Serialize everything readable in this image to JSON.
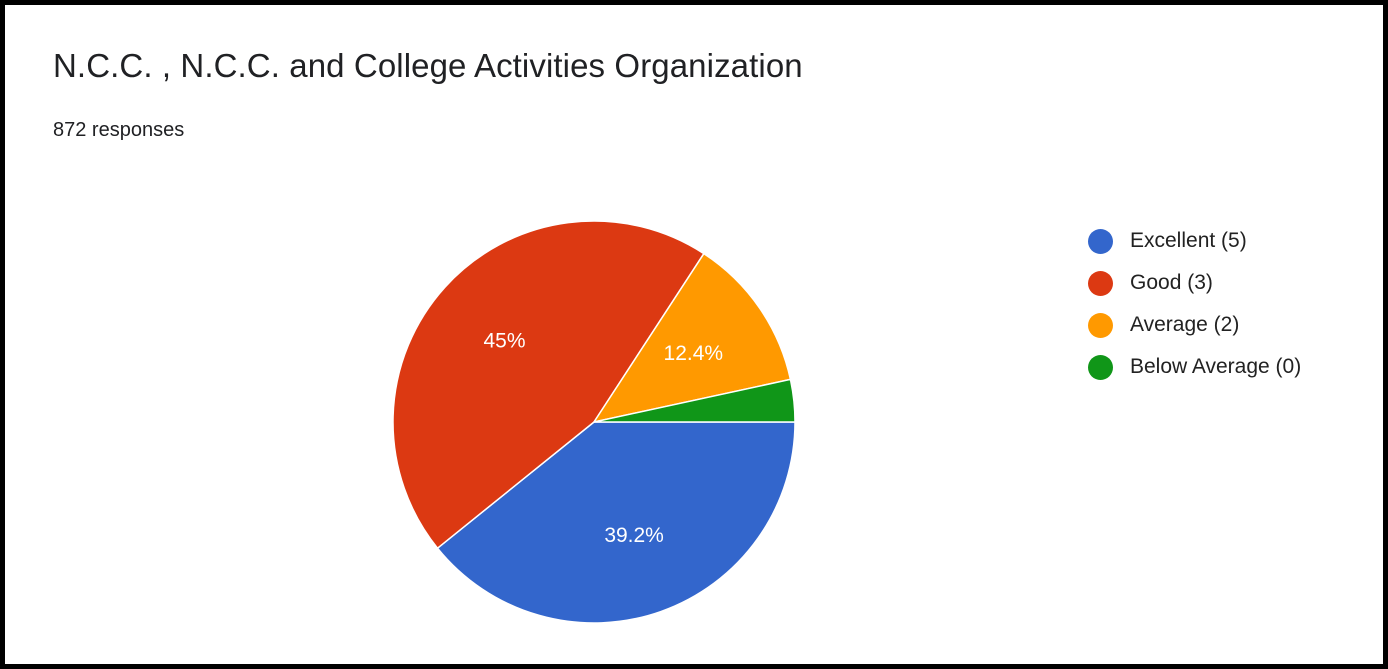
{
  "header": {
    "title": "N.C.C. , N.C.C. and College Activities  Organization",
    "responses": "872 responses"
  },
  "chart_data": {
    "type": "pie",
    "title": "N.C.C. , N.C.C. and College Activities  Organization",
    "subtitle": "872 responses",
    "legend_position": "right",
    "slices": [
      {
        "label": "Excellent (5)",
        "value": 39.2,
        "display": "39.2%",
        "color": "#3366cc"
      },
      {
        "label": "Good (3)",
        "value": 45.0,
        "display": "45%",
        "color": "#dc3912"
      },
      {
        "label": "Average (2)",
        "value": 12.4,
        "display": "12.4%",
        "color": "#ff9900"
      },
      {
        "label": "Below Average (0)",
        "value": 3.4,
        "display": "",
        "color": "#109618"
      }
    ]
  }
}
